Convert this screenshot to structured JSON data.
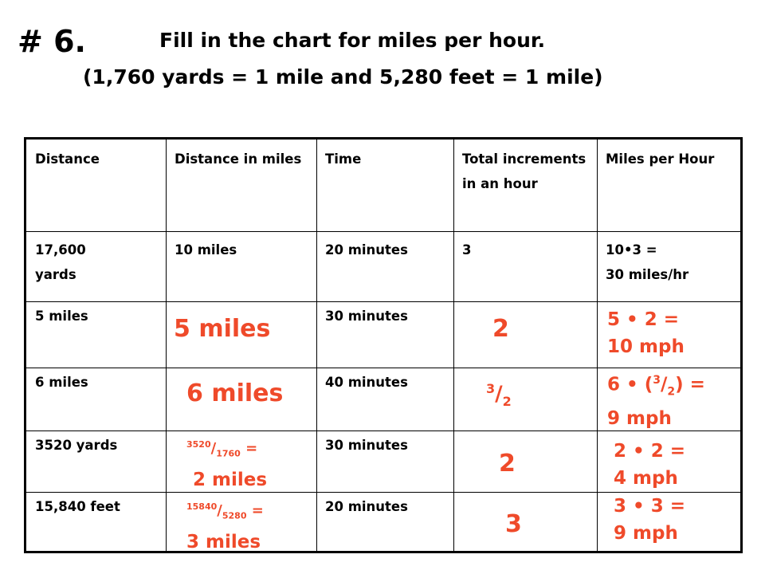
{
  "header": {
    "number": "# 6.",
    "title_line1": "Fill in the chart for miles per hour.",
    "title_line2": "(1,760 yards = 1 mile and 5,280 feet = 1 mile)"
  },
  "table": {
    "columns": [
      "Distance",
      "Distance in miles",
      "Time",
      "Total increments in an hour",
      "Miles per Hour"
    ],
    "rows": [
      {
        "distance": "17,600\nyards",
        "miles": "10 miles",
        "time": "20 minutes",
        "increments": "3",
        "mph": "10•3 =\n30 miles/hr"
      },
      {
        "distance": "5 miles",
        "time": "30 minutes"
      },
      {
        "distance": "6 miles",
        "time": "40 minutes"
      },
      {
        "distance": "3520 yards",
        "time": "30 minutes"
      },
      {
        "distance": "15,840 feet",
        "time": "20 minutes"
      }
    ]
  },
  "answers": {
    "r2_miles": "5 miles",
    "r2_inc": "2",
    "r2_mph_line1": "5 • 2 =",
    "r2_mph_line2": "10 mph",
    "r3_miles": "6 miles",
    "r3_inc_num": "3",
    "r3_inc_slash": "/",
    "r3_inc_den": "2",
    "r3_mph_a": "6 • (",
    "r3_mph_num": "3",
    "r3_mph_slash": "/",
    "r3_mph_den": "2",
    "r3_mph_b": ") =",
    "r3_mph_line2": "9 mph",
    "r4_miles_num": "3520",
    "r4_miles_slash": "/",
    "r4_miles_den": "1760",
    "r4_miles_eq": " =",
    "r4_miles_line2": "2 miles",
    "r4_inc": "2",
    "r4_mph_line1": "2 • 2 =",
    "r4_mph_line2": "4 mph",
    "r5_miles_num": "15840",
    "r5_miles_slash": "/",
    "r5_miles_den": "5280",
    "r5_miles_eq": " =",
    "r5_miles_line2": "3 miles",
    "r5_inc": "3",
    "r5_mph_line1": "3 • 3 =",
    "r5_mph_line2": "9 mph"
  },
  "colors": {
    "answer": "#ef4a2a",
    "text": "#000000"
  }
}
